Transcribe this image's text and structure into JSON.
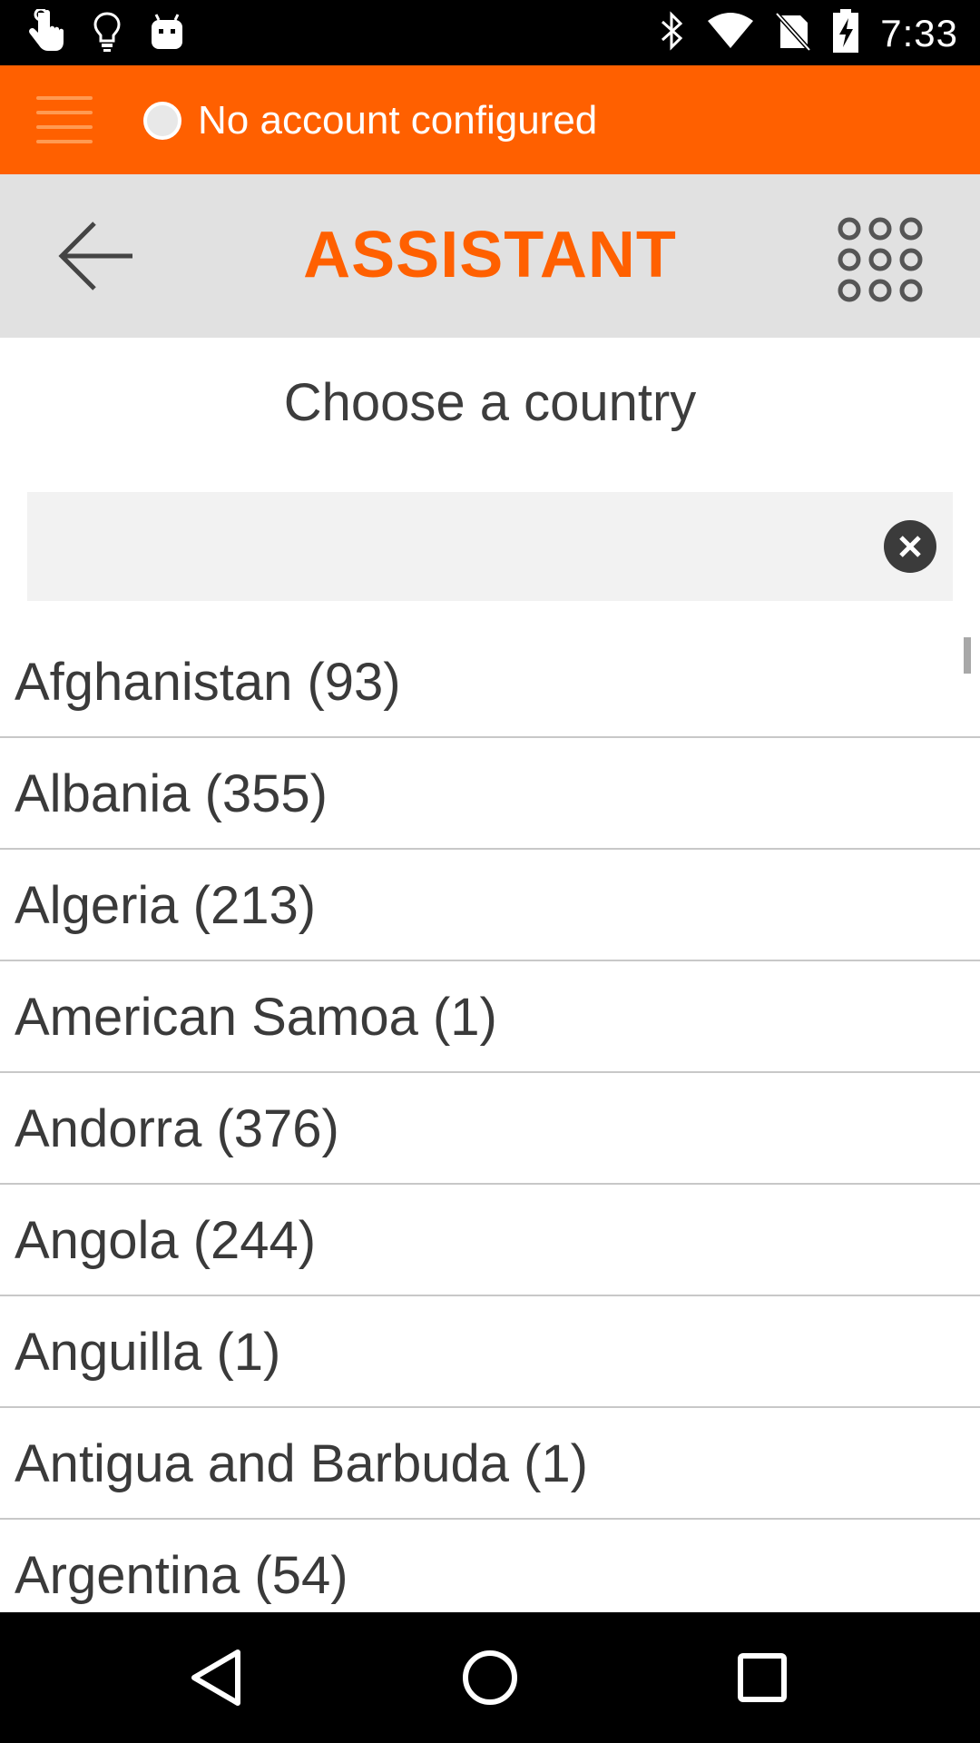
{
  "status_bar": {
    "time": "7:33",
    "left_icons": [
      "touch-icon",
      "lightbulb-icon",
      "android-icon"
    ],
    "right_icons": [
      "bluetooth-icon",
      "wifi-icon",
      "no-sim-icon",
      "battery-charging-icon"
    ]
  },
  "account_bar": {
    "status_text": "No account configured",
    "color": "#ff6000"
  },
  "toolbar": {
    "title": "ASSISTANT",
    "back_icon": "arrow-left-icon",
    "dialpad_icon": "dialpad-icon"
  },
  "main": {
    "heading": "Choose a country",
    "search": {
      "value": "",
      "placeholder": ""
    },
    "countries": [
      "Afghanistan (93)",
      "Albania (355)",
      "Algeria (213)",
      "American Samoa (1)",
      "Andorra (376)",
      "Angola (244)",
      "Anguilla (1)",
      "Antigua and Barbuda (1)",
      "Argentina (54)"
    ]
  },
  "nav_bar": {
    "buttons": [
      "back-triangle-icon",
      "home-circle-icon",
      "recents-square-icon"
    ]
  }
}
